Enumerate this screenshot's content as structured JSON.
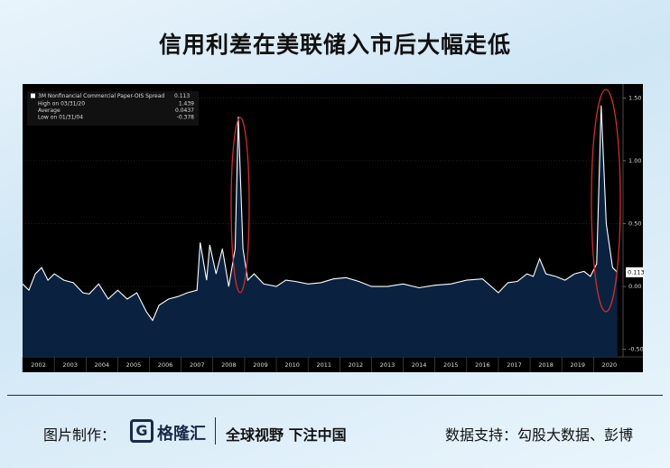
{
  "chart_data": {
    "type": "line",
    "title": "信用利差在美联储入市后大幅走低",
    "x": [
      2002.0,
      2002.2,
      2002.4,
      2002.6,
      2002.8,
      2003.0,
      2003.3,
      2003.6,
      2003.9,
      2004.1,
      2004.4,
      2004.7,
      2005.0,
      2005.3,
      2005.6,
      2005.9,
      2006.1,
      2006.3,
      2006.6,
      2006.9,
      2007.2,
      2007.5,
      2007.6,
      2007.8,
      2007.9,
      2008.1,
      2008.3,
      2008.5,
      2008.7,
      2008.8,
      2008.95,
      2009.1,
      2009.3,
      2009.6,
      2010.0,
      2010.3,
      2010.6,
      2011.0,
      2011.4,
      2011.8,
      2012.2,
      2012.6,
      2013.0,
      2013.5,
      2014.0,
      2014.5,
      2015.0,
      2015.5,
      2016.0,
      2016.5,
      2017.0,
      2017.3,
      2017.6,
      2017.9,
      2018.1,
      2018.3,
      2018.5,
      2018.8,
      2019.1,
      2019.4,
      2019.7,
      2019.9,
      2020.1,
      2020.24,
      2020.4,
      2020.6,
      2020.75
    ],
    "series": [
      {
        "name": "3M Nonfinancial Commercial Paper-OIS Spread",
        "color": "#ffffff",
        "fill": "#0a2240",
        "values": [
          0.02,
          -0.03,
          0.1,
          0.15,
          0.05,
          0.1,
          0.05,
          0.03,
          -0.05,
          -0.06,
          0.02,
          -0.1,
          -0.03,
          -0.1,
          -0.05,
          -0.2,
          -0.27,
          -0.15,
          -0.1,
          -0.08,
          -0.05,
          -0.03,
          0.35,
          0.05,
          0.33,
          0.1,
          0.3,
          0.0,
          0.3,
          1.35,
          0.3,
          0.05,
          0.1,
          0.02,
          0.0,
          0.05,
          0.04,
          0.02,
          0.03,
          0.06,
          0.07,
          0.04,
          0.0,
          0.0,
          0.02,
          -0.01,
          0.01,
          0.02,
          0.05,
          0.06,
          -0.05,
          0.03,
          0.04,
          0.1,
          0.08,
          0.22,
          0.1,
          0.08,
          0.05,
          0.1,
          0.12,
          0.08,
          0.18,
          1.439,
          0.5,
          0.15,
          0.113
        ]
      }
    ],
    "stats": [
      {
        "label": "High on 03/31/20",
        "value": 1.439
      },
      {
        "label": "Average",
        "value": 0.0437
      },
      {
        "label": "Low on 01/31/04",
        "value": -0.378
      }
    ],
    "xlim": [
      2002,
      2020.93
    ],
    "xticks": [
      2002,
      2003,
      2004,
      2005,
      2006,
      2007,
      2008,
      2009,
      2010,
      2011,
      2012,
      2013,
      2014,
      2015,
      2016,
      2017,
      2018,
      2019,
      2020
    ],
    "ylim": [
      -0.56,
      1.61
    ],
    "yticks": [
      {
        "value": -0.5,
        "label": "-0.50"
      },
      {
        "value": 0,
        "label": "0.00"
      },
      {
        "value": 0.5,
        "label": "0.50"
      },
      {
        "value": 1,
        "label": "1.00"
      },
      {
        "value": 1.5,
        "label": "1.50"
      }
    ],
    "grid": true
  },
  "footer": {
    "made_by": "图片制作：",
    "logo": "格隆汇",
    "slogan": "全球视野 下注中国",
    "source": "数据支持：勾股大数据、彭博"
  }
}
